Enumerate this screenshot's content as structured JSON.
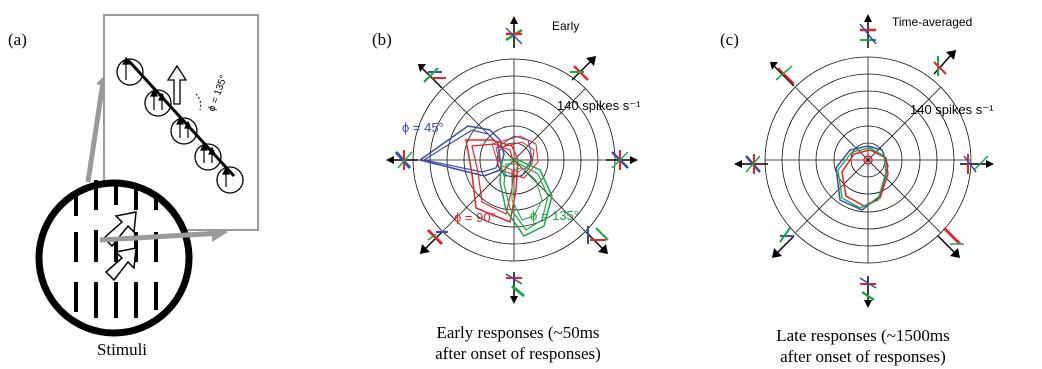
{
  "panels": {
    "a": {
      "label": "(a)",
      "caption": "Stimuli",
      "angle_label": "ϕ = 135°"
    },
    "b": {
      "label": "(b)",
      "title": "Early",
      "scale": "140 spikes s⁻¹",
      "caption_line1": "Early responses (~50ms",
      "caption_line2": "after onset of responses)",
      "annotations": {
        "blue": "ϕ = 45°",
        "red": "ϕ = 90°",
        "green": "ϕ = 135°"
      }
    },
    "c": {
      "label": "(c)",
      "title": "Time-averaged",
      "scale": "140 spikes s⁻¹",
      "caption_line1": "Late responses (~1500ms",
      "caption_line2": "after onset of responses)"
    }
  },
  "colors": {
    "blue": "#3a4ea8",
    "red": "#e0262b",
    "green": "#1fa44a",
    "grey": "#9a9a9a"
  }
}
